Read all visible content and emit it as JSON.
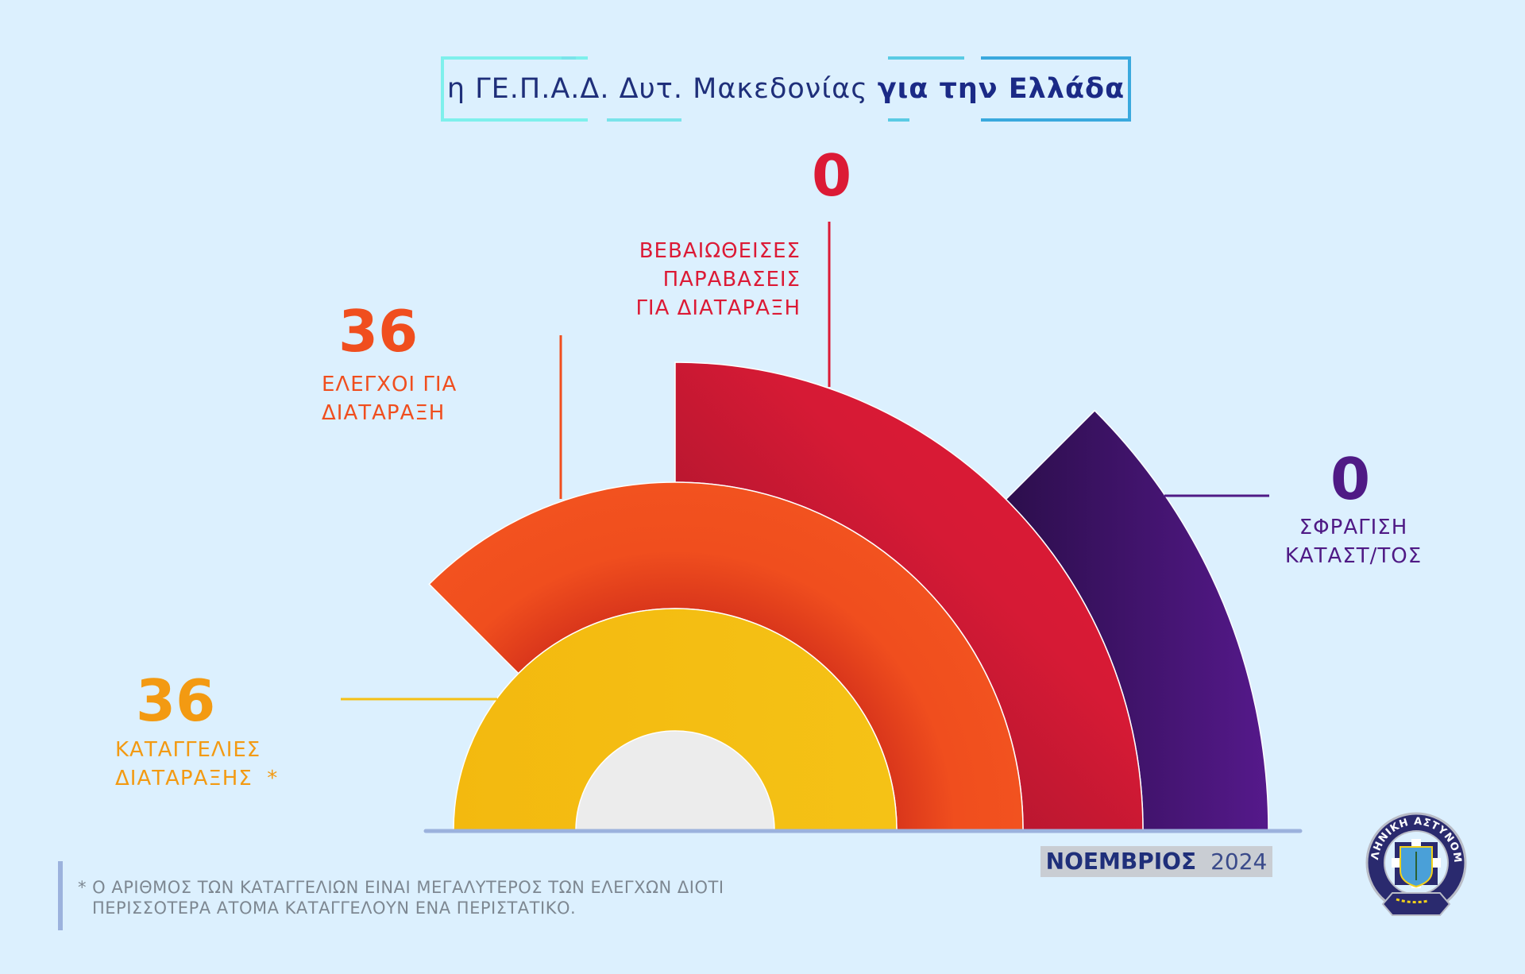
{
  "title": {
    "regular": "η ΓΕ.Π.Α.Δ. Δυτ. Μακεδονίας",
    "bold": "για την Ελλάδα"
  },
  "chart_data": {
    "type": "radial-bar",
    "categories": [
      "ΚΑΤΑΓΓΕΛΙΕΣ ΔΙΑΤΑΡΑΞΗΣ *",
      "ΕΛΕΓΧΟΙ ΓΙΑ ΔΙΑΤΑΡΑΞΗ",
      "ΒΕΒΑΙΩΘΕΙΣΕΣ ΠΑΡΑΒΑΣΕΙΣ ΓΙΑ ΔΙΑΤΑΡΑΞΗ",
      "ΣΦΡΑΓΙΣΗ ΚΑΤΑΣΤ/ΤΟΣ"
    ],
    "values": [
      36,
      36,
      0,
      0
    ],
    "colors": [
      "#f5c015",
      "#f04e1e",
      "#dc1a35",
      "#4f1a85"
    ]
  },
  "stats": [
    {
      "value": "36",
      "lines": [
        "ΚΑΤΑΓΓΕΛΙΕΣ",
        "ΔΙΑΤΑΡΑΞΗΣ  *"
      ],
      "color": "#f39a12"
    },
    {
      "value": "36",
      "lines": [
        "ΕΛΕΓΧΟΙ ΓΙΑ",
        "ΔΙΑΤΑΡΑΞΗ"
      ],
      "color": "#f04e1e"
    },
    {
      "value": "0",
      "lines": [
        "ΒΕΒΑΙΩΘΕΙΣΕΣ",
        "ΠΑΡΑΒΑΣΕΙΣ",
        "ΓΙΑ ΔΙΑΤΑΡΑΞΗ"
      ],
      "color": "#dc1a35"
    },
    {
      "value": "0",
      "lines": [
        "ΣΦΡΑΓΙΣΗ",
        "ΚΑΤΑΣΤ/ΤΟΣ"
      ],
      "color": "#4f1a85"
    }
  ],
  "period": {
    "month": "ΝΟΕΜΒΡΙΟΣ",
    "year": "2024"
  },
  "footnote": [
    "* Ο ΑΡΙΘΜΟΣ ΤΩΝ ΚΑΤΑΓΓΕΛΙΩΝ ΕΙΝΑΙ ΜΕΓΑΛΥΤΕΡΟΣ ΤΩΝ ΕΛΕΓΧΩΝ ΔΙΟΤΙ",
    "ΠΕΡΙΣΣΟΤΕΡΑ ΑΤΟΜΑ ΚΑΤΑΓΓΕΛΟΥΝ ΕΝΑ ΠΕΡΙΣΤΑΤΙΚΟ."
  ],
  "logo": {
    "text": "ΕΛΛΗΝΙΚΗ ΑΣΤΥΝΟΜΙΑ"
  },
  "background": "#dcf0fe"
}
